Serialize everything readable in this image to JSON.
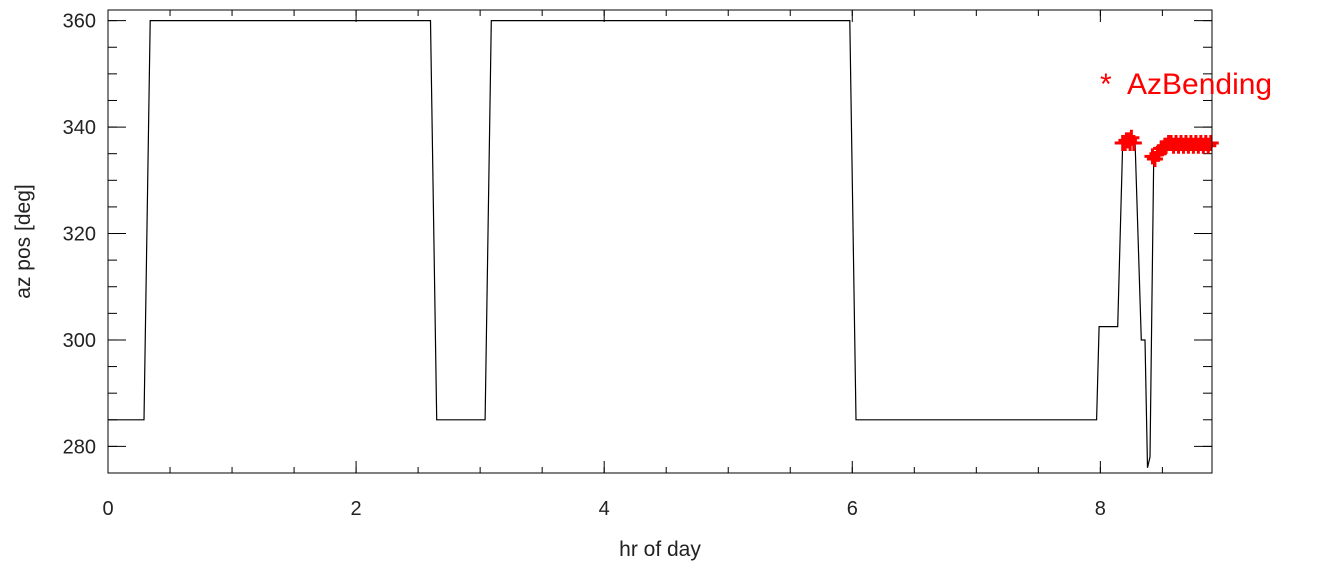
{
  "chart_data": {
    "type": "line",
    "title": "",
    "xlabel": "hr of day",
    "ylabel": "az pos [deg]",
    "xlim": [
      0,
      8.9
    ],
    "ylim": [
      275,
      362
    ],
    "xticks": [
      0,
      2,
      4,
      6,
      8
    ],
    "xtick_labels": [
      "0",
      "2",
      "4",
      "6",
      "8"
    ],
    "yticks": [
      280,
      300,
      320,
      340,
      360
    ],
    "ytick_labels": [
      "280",
      "300",
      "320",
      "340",
      "360"
    ],
    "x_minor_step": 0.5,
    "y_minor_step": 5,
    "grid": false,
    "series": [
      {
        "color": "#000000",
        "style": "line",
        "x": [
          0,
          0.29,
          0.34,
          2.6,
          2.65,
          3.04,
          3.09,
          5.98,
          6.03,
          7.97,
          7.99,
          8.14,
          8.18,
          8.26,
          8.28,
          8.33,
          8.36,
          8.38,
          8.4,
          8.43,
          8.47,
          8.9
        ],
        "y": [
          285,
          285,
          360,
          360,
          285,
          285,
          360,
          360,
          285,
          285,
          302.5,
          302.5,
          337,
          337,
          337,
          300,
          300,
          276,
          278,
          334,
          336,
          336
        ]
      },
      {
        "name": "AzBending",
        "color": "#ff0000",
        "style": "marker",
        "marker": "+",
        "x": [
          8.18,
          8.2,
          8.21,
          8.23,
          8.24,
          8.25,
          8.27,
          8.42,
          8.44,
          8.46,
          8.47,
          8.49,
          8.5,
          8.52,
          8.53,
          8.55,
          8.57,
          8.59,
          8.61,
          8.63,
          8.65,
          8.67,
          8.69,
          8.71,
          8.73,
          8.75,
          8.77,
          8.79,
          8.81,
          8.83,
          8.85,
          8.87,
          8.89
        ],
        "y": [
          337,
          337,
          337.5,
          337.5,
          337,
          338,
          337,
          334.5,
          334,
          335,
          335,
          336,
          336,
          336.5,
          336.5,
          337,
          337,
          336.5,
          337,
          336.5,
          337,
          336.5,
          337,
          336.5,
          337,
          336.5,
          337,
          336.5,
          337,
          336.5,
          337,
          336.5,
          337
        ]
      }
    ],
    "legend": {
      "placement": "top-right",
      "symbol": "*",
      "label": "AzBending",
      "color": "#ff0000"
    }
  }
}
